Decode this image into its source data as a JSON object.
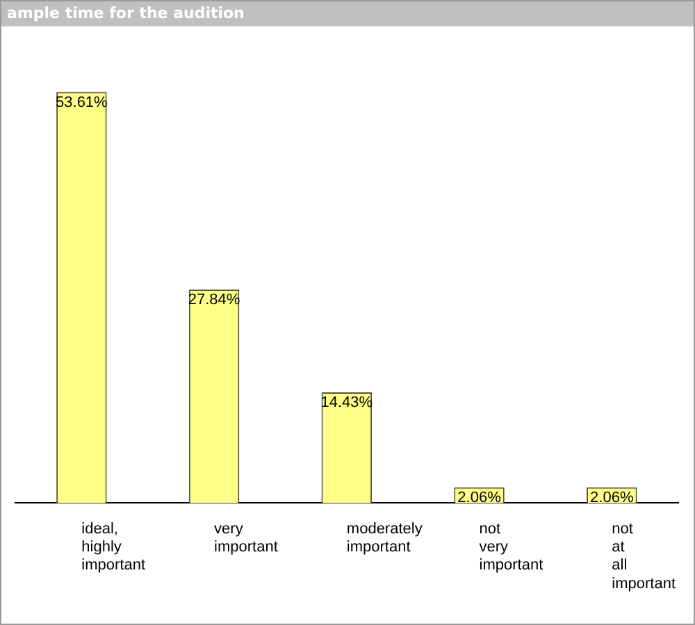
{
  "chart_data": {
    "type": "bar",
    "title": "ample time for the audition",
    "categories": [
      "ideal, highly important",
      "very important",
      "moderately important",
      "not very important",
      "not at all important"
    ],
    "values": [
      53.61,
      27.84,
      14.43,
      2.06,
      2.06
    ],
    "value_labels": [
      "53.61%",
      "27.84%",
      "14.43%",
      "2.06%",
      "2.06%"
    ],
    "color": "#ffff88",
    "tick_labels": "x",
    "grid": false,
    "legend": false
  }
}
